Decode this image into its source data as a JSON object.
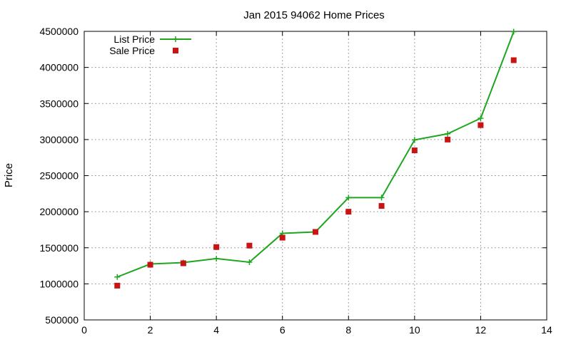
{
  "chart_data": {
    "type": "line",
    "title": "Jan 2015 94062 Home Prices",
    "xlabel": "",
    "ylabel": "Price",
    "xlim": [
      0,
      14
    ],
    "ylim": [
      500000,
      4500000
    ],
    "x_ticks": [
      0,
      2,
      4,
      6,
      8,
      10,
      12,
      14
    ],
    "y_ticks": [
      500000,
      1000000,
      1500000,
      2000000,
      2500000,
      3000000,
      3500000,
      4000000,
      4500000
    ],
    "grid": true,
    "legend_position": "top-left",
    "series": [
      {
        "name": "List Price",
        "style": "line+cross",
        "color": "#1fa61f",
        "x": [
          1,
          2,
          3,
          4,
          5,
          6,
          7,
          8,
          9,
          10,
          11,
          12,
          13
        ],
        "values": [
          1095000,
          1275000,
          1295000,
          1350000,
          1300000,
          1700000,
          1720000,
          2195000,
          2195000,
          2995000,
          3080000,
          3295000,
          4495000
        ]
      },
      {
        "name": "Sale Price",
        "style": "square",
        "color": "#c81414",
        "x": [
          1,
          2,
          3,
          4,
          5,
          6,
          7,
          8,
          9,
          10,
          11,
          12,
          13
        ],
        "values": [
          975000,
          1265000,
          1285000,
          1510000,
          1530000,
          1640000,
          1720000,
          2000000,
          2080000,
          2850000,
          3000000,
          3200000,
          4100000
        ]
      }
    ]
  }
}
